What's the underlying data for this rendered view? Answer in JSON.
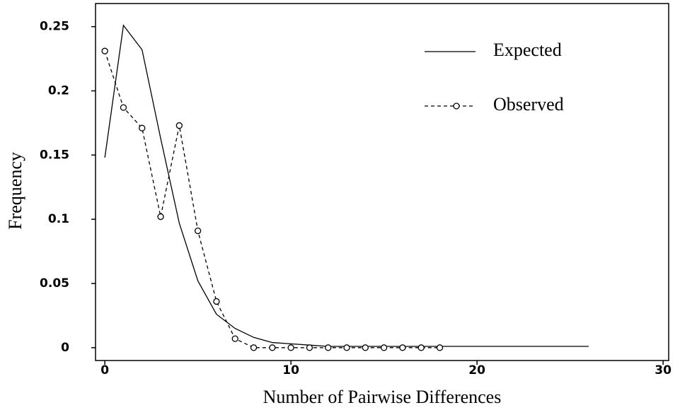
{
  "chart_data": {
    "type": "line",
    "x_label": "Number of Pairwise Differences",
    "y_label": "Frequency",
    "xlim": [
      -0.5,
      30.3
    ],
    "xticks": [
      0,
      10,
      20,
      30
    ],
    "ylim": [
      -0.01,
      0.268
    ],
    "yticks": [
      0,
      0.05,
      0.1,
      0.15,
      0.2,
      0.25
    ],
    "series": [
      {
        "name": "Expected",
        "color": "#000000",
        "style": "solid",
        "marker": "none",
        "x": [
          0,
          1,
          2,
          3,
          4,
          5,
          6,
          7,
          8,
          9,
          10,
          11,
          12,
          13,
          14,
          15,
          16,
          17,
          18,
          19,
          20,
          21,
          22,
          23,
          24,
          25,
          26
        ],
        "values": [
          0.148,
          0.251,
          0.232,
          0.163,
          0.097,
          0.052,
          0.026,
          0.015,
          0.008,
          0.004,
          0.003,
          0.002,
          0.001,
          0.001,
          0.001,
          0.001,
          0.001,
          0.001,
          0.001,
          0.001,
          0.001,
          0.001,
          0.001,
          0.001,
          0.001,
          0.001,
          0.001
        ]
      },
      {
        "name": "Observed",
        "color": "#000000",
        "style": "dashed",
        "marker": "circle",
        "x": [
          0,
          1,
          2,
          3,
          4,
          5,
          6,
          7,
          8,
          9,
          10,
          11,
          12,
          13,
          14,
          15,
          16,
          17,
          18
        ],
        "values": [
          0.231,
          0.187,
          0.171,
          0.102,
          0.173,
          0.091,
          0.036,
          0.007,
          0,
          0,
          0,
          0,
          0,
          0,
          0,
          0,
          0,
          0,
          0
        ]
      }
    ]
  }
}
